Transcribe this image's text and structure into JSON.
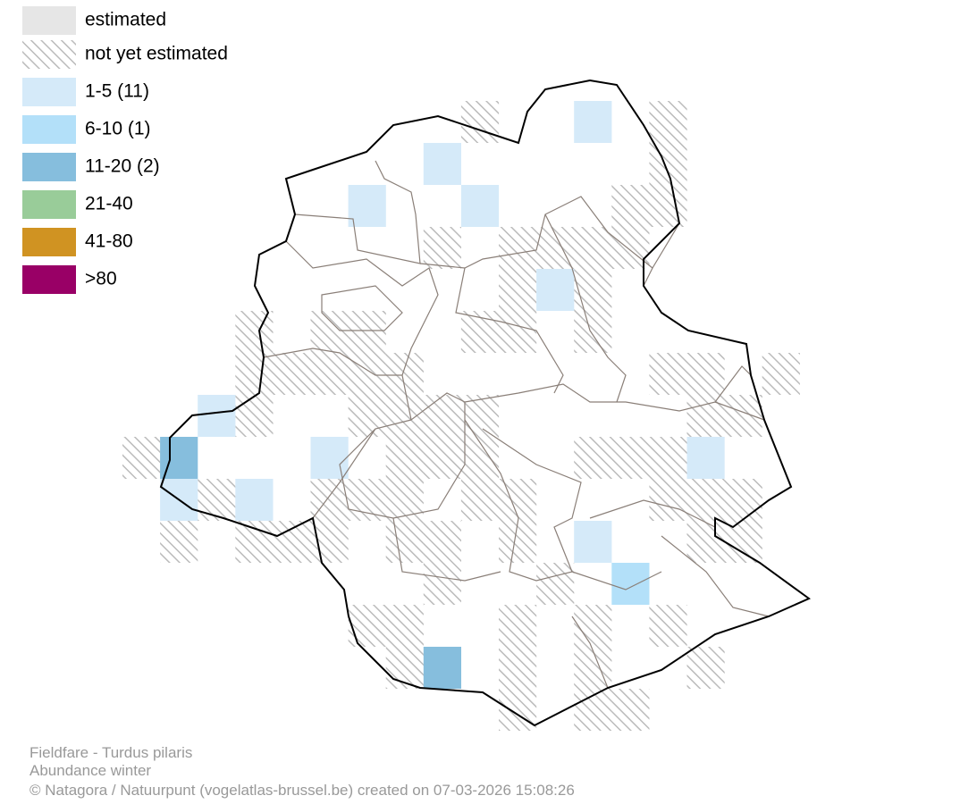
{
  "legend": [
    {
      "label": "estimated",
      "color": "#e6e6e6"
    },
    {
      "label": "not yet estimated",
      "color": "#bbbbbb"
    },
    {
      "label": "1-5 (11)",
      "color": "#d5eaf9"
    },
    {
      "label": "6-10 (1)",
      "color": "#b3e0f9"
    },
    {
      "label": "11-20 (2)",
      "color": "#86bedd"
    },
    {
      "label": "21-40",
      "color": "#99cc99"
    },
    {
      "label": "41-80",
      "color": "#d09322"
    },
    {
      "label": ">80",
      "color": "#990066"
    }
  ],
  "footer": [
    "Fieldfare - Turdus pilaris",
    "Abundance winter",
    "© Natagora / Natuurpunt (vogelatlas-brussel.be) created on 07-03-2026 15:08:26"
  ]
}
